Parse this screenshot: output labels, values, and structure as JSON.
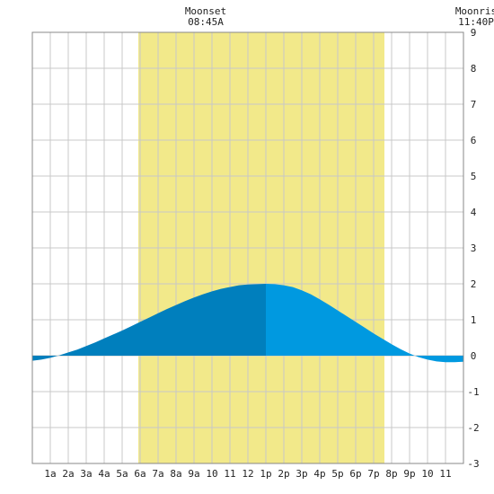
{
  "chart_data": {
    "type": "area",
    "title": "",
    "xlabel": "",
    "ylabel": "",
    "xlim": [
      0,
      24
    ],
    "ylim": [
      -3,
      9
    ],
    "grid": true,
    "x_tick_labels": [
      "1a",
      "2a",
      "3a",
      "4a",
      "5a",
      "6a",
      "7a",
      "8a",
      "9a",
      "10",
      "11",
      "12",
      "1p",
      "2p",
      "3p",
      "4p",
      "5p",
      "6p",
      "7p",
      "8p",
      "9p",
      "10",
      "11"
    ],
    "y_tick_labels": [
      "9",
      "8",
      "7",
      "6",
      "5",
      "4",
      "3",
      "2",
      "1",
      "0",
      "-1",
      "-2",
      "-3"
    ],
    "daylight": {
      "start": 5.9,
      "end": 19.6,
      "color": "#f2e98a"
    },
    "annotations": [
      {
        "title": "Moonset",
        "time": "08:45A"
      },
      {
        "title": "Moonris",
        "time": "11:40P"
      }
    ],
    "peak_hour": 13.0,
    "series": [
      {
        "x": [
          0,
          0.5,
          1,
          1.5,
          2,
          2.5,
          3,
          3.5,
          4,
          4.5,
          5,
          5.5,
          6,
          6.5,
          7,
          7.5,
          8,
          8.5,
          9,
          9.5,
          10,
          10.5,
          11,
          11.5,
          12,
          12.5,
          13,
          13.5,
          14,
          14.5,
          15,
          15.5,
          16,
          16.5,
          17,
          17.5,
          18,
          18.5,
          19,
          19.5,
          20,
          20.5,
          21,
          21.5,
          22,
          22.5,
          23,
          23.5,
          24
        ],
        "values": [
          -0.14,
          -0.11,
          -0.06,
          0.01,
          0.09,
          0.17,
          0.27,
          0.37,
          0.48,
          0.59,
          0.7,
          0.82,
          0.94,
          1.06,
          1.18,
          1.3,
          1.41,
          1.52,
          1.62,
          1.71,
          1.79,
          1.86,
          1.91,
          1.96,
          1.98,
          1.99,
          2.0,
          1.99,
          1.96,
          1.91,
          1.82,
          1.71,
          1.57,
          1.42,
          1.26,
          1.1,
          0.94,
          0.78,
          0.62,
          0.47,
          0.32,
          0.18,
          0.06,
          -0.04,
          -0.11,
          -0.16,
          -0.18,
          -0.18,
          -0.17
        ]
      }
    ],
    "colors": {
      "fill_before_peak": "#007fbd",
      "fill_after_peak": "#0099e0",
      "grid": "#c8c8c8",
      "frame": "#888888",
      "zero_line": "#5aa0c8"
    }
  }
}
